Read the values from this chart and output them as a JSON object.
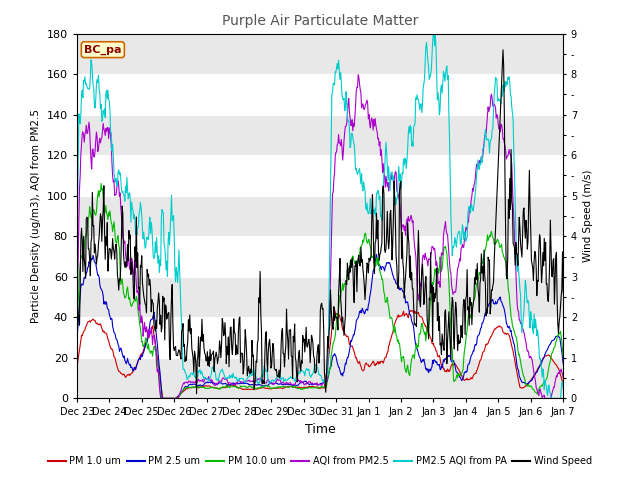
{
  "title": "Purple Air Particulate Matter",
  "xlabel": "Time",
  "ylabel_left": "Particle Density (ug/m3), AQI from PM2.5",
  "ylabel_right": "Wind Speed (m/s)",
  "ylim_left": [
    0,
    180
  ],
  "ylim_right": [
    0.0,
    9.0
  ],
  "yticks_left": [
    0,
    20,
    40,
    60,
    80,
    100,
    120,
    140,
    160,
    180
  ],
  "yticks_right": [
    0.0,
    1.0,
    2.0,
    3.0,
    4.0,
    5.0,
    6.0,
    7.0,
    8.0,
    9.0
  ],
  "n_points": 720,
  "xtick_labels": [
    "Dec 23",
    "Dec 24",
    "Dec 25",
    "Dec 26",
    "Dec 27",
    "Dec 28",
    "Dec 29",
    "Dec 30",
    "Dec 31",
    "Jan 1",
    "Jan 2",
    "Jan 3",
    "Jan 4",
    "Jan 5",
    "Jan 6",
    "Jan 7"
  ],
  "colors": {
    "pm1": "#cc0000",
    "pm25": "#0000cc",
    "pm10": "#00bb00",
    "aqi_pm25": "#aa00cc",
    "pm25_aqi_pa": "#00cccc",
    "wind": "#000000"
  },
  "legend": [
    {
      "label": "PM 1.0 um",
      "color": "#cc0000"
    },
    {
      "label": "PM 2.5 um",
      "color": "#0000cc"
    },
    {
      "label": "PM 10.0 um",
      "color": "#00bb00"
    },
    {
      "label": "AQI from PM2.5",
      "color": "#aa00cc"
    },
    {
      "label": "PM2.5 AQI from PA",
      "color": "#00cccc"
    },
    {
      "label": "Wind Speed",
      "color": "#000000"
    }
  ],
  "box_label": "BC_pa",
  "box_facecolor": "#ffffcc",
  "box_edgecolor": "#cc6600",
  "background_color": "#ffffff",
  "plot_bg_color": "#ffffff",
  "grid_stripe_color": "#e8e8e8"
}
